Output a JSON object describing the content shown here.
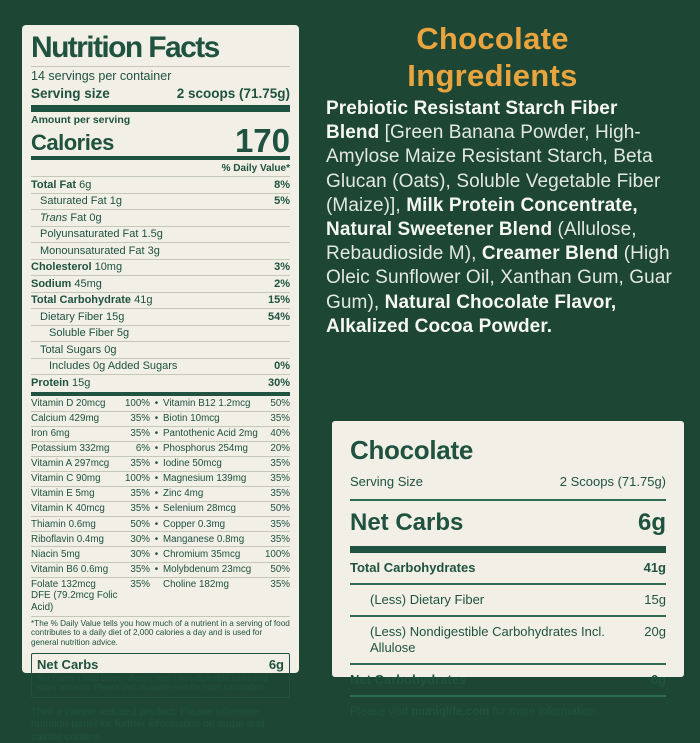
{
  "colors": {
    "background": "#1d4734",
    "panel": "#f1efe6",
    "label_green": "#1f523f",
    "accent_orange": "#e8a43e",
    "ingredients_text": "#e3e8e0",
    "divider_green": "#2e6b54"
  },
  "nutrition_label": {
    "title": "Nutrition Facts",
    "servings_per_container": "14 servings per container",
    "serving_size_label": "Serving size",
    "serving_size_value": "2 scoops (71.75g)",
    "amount_per_serving": "Amount per serving",
    "calories_label": "Calories",
    "calories_value": "170",
    "daily_value_header": "% Daily Value*",
    "nutrient_rows": [
      {
        "n": "Total Fat",
        "a": "6g",
        "dv": "8%",
        "b": 1,
        "i": 0,
        "it": 0
      },
      {
        "n": "Saturated Fat",
        "a": "1g",
        "dv": "5%",
        "b": 0,
        "i": 1,
        "it": 0
      },
      {
        "n": "Trans Fat",
        "a": "0g",
        "dv": "",
        "b": 0,
        "i": 1,
        "it": 1
      },
      {
        "n": "Polyunsaturated Fat",
        "a": "1.5g",
        "dv": "",
        "b": 0,
        "i": 1,
        "it": 0
      },
      {
        "n": "Monounsaturated Fat",
        "a": "3g",
        "dv": "",
        "b": 0,
        "i": 1,
        "it": 0
      },
      {
        "n": "Cholesterol",
        "a": "10mg",
        "dv": "3%",
        "b": 1,
        "i": 0,
        "it": 0
      },
      {
        "n": "Sodium",
        "a": "45mg",
        "dv": "2%",
        "b": 1,
        "i": 0,
        "it": 0
      },
      {
        "n": "Total Carbohydrate",
        "a": "41g",
        "dv": "15%",
        "b": 1,
        "i": 0,
        "it": 0
      },
      {
        "n": "Dietary Fiber",
        "a": "15g",
        "dv": "54%",
        "b": 0,
        "i": 1,
        "it": 0
      },
      {
        "n": "Soluble Fiber",
        "a": "5g",
        "dv": "",
        "b": 0,
        "i": 2,
        "it": 0
      },
      {
        "n": "Total Sugars",
        "a": "0g",
        "dv": "",
        "b": 0,
        "i": 1,
        "it": 0
      },
      {
        "n": "Includes 0g Added Sugars",
        "a": "",
        "dv": "0%",
        "b": 0,
        "i": 2,
        "it": 0
      },
      {
        "n": "Protein",
        "a": "15g",
        "dv": "30%",
        "b": 1,
        "i": 0,
        "it": 0
      }
    ],
    "vitamin_rows": [
      {
        "n1": "Vitamin D 20mcg",
        "p1": "100%",
        "dot": 1,
        "n2": "Vitamin B12 1.2mcg",
        "p2": "50%"
      },
      {
        "n1": "Calcium 429mg",
        "p1": "35%",
        "dot": 1,
        "n2": "Biotin 10mcg",
        "p2": "35%"
      },
      {
        "n1": "Iron 6mg",
        "p1": "35%",
        "dot": 1,
        "n2": "Pantothenic Acid 2mg",
        "p2": "40%"
      },
      {
        "n1": "Potassium 332mg",
        "p1": "6%",
        "dot": 1,
        "n2": "Phosphorus 254mg",
        "p2": "20%"
      },
      {
        "n1": "Vitamin A 297mcg",
        "p1": "35%",
        "dot": 1,
        "n2": "Iodine 50mcg",
        "p2": "35%"
      },
      {
        "n1": "Vitamin C 90mg",
        "p1": "100%",
        "dot": 1,
        "n2": "Magnesium 139mg",
        "p2": "35%"
      },
      {
        "n1": "Vitamin E 5mg",
        "p1": "35%",
        "dot": 1,
        "n2": "Zinc 4mg",
        "p2": "35%"
      },
      {
        "n1": "Vitamin K 40mcg",
        "p1": "35%",
        "dot": 1,
        "n2": "Selenium 28mcg",
        "p2": "50%"
      },
      {
        "n1": "Thiamin 0.6mg",
        "p1": "50%",
        "dot": 1,
        "n2": "Copper 0.3mg",
        "p2": "35%"
      },
      {
        "n1": "Riboflavin 0.4mg",
        "p1": "30%",
        "dot": 1,
        "n2": "Manganese 0.8mg",
        "p2": "35%"
      },
      {
        "n1": "Niacin 5mg",
        "p1": "30%",
        "dot": 1,
        "n2": "Chromium 35mcg",
        "p2": "100%"
      },
      {
        "n1": "Vitamin B6 0.6mg",
        "p1": "35%",
        "dot": 1,
        "n2": "Molybdenum 23mcg",
        "p2": "50%"
      },
      {
        "n1": "Folate 132mcg DFE (79.2mcg Folic Acid)",
        "p1": "35%",
        "dot": 0,
        "n2": "Choline 182mg",
        "p2": "35%"
      }
    ],
    "footnote": "*The % Daily Value tells you how much of a nutrient in a serving of food contributes to a daily diet of 2,000 calories a day and is used for general nutrition advice.",
    "net_carbs_box": {
      "label": "Net Carbs",
      "value": "6g",
      "small_text": "Net Carbs = total carbs - dietary fiber - non-digestible carbs and sugar alcohols. Please visit muniqlife.com for more information."
    },
    "dagger_note": "†Not a calorie reduced product. Please reference nutrition panel for further information on sugar and calorie content."
  },
  "ingredients": {
    "title_line1": "Chocolate",
    "title_line2": "Ingredients",
    "segments": [
      {
        "t": "Prebiotic Resistant Starch Fiber Blend ",
        "b": 1
      },
      {
        "t": "[Green Banana Powder, High-Amylose Maize Resistant Starch, Beta Glucan (Oats), Soluble Vegetable Fiber (Maize)], ",
        "b": 0
      },
      {
        "t": "Milk Protein Concentrate, Natural Sweetener Blend ",
        "b": 1
      },
      {
        "t": "(Allulose, Rebaudioside M), ",
        "b": 0
      },
      {
        "t": "Creamer Blend ",
        "b": 1
      },
      {
        "t": "(High Oleic Sunflower Oil, Xanthan Gum, Guar Gum), ",
        "b": 0
      },
      {
        "t": "Natural Chocolate Flavor, Alkalized Cocoa Powder.",
        "b": 1
      }
    ]
  },
  "net_carbs_panel": {
    "title": "Chocolate",
    "serving_size_label": "Serving Size",
    "serving_size_value": "2 Scoops (71.75g)",
    "net_carbs_label": "Net Carbs",
    "net_carbs_value": "6g",
    "rows": [
      {
        "n": "Total Carbohydrates",
        "a": "41g",
        "b": 1,
        "i": 0
      },
      {
        "n": "(Less) Dietary Fiber",
        "a": "15g",
        "b": 0,
        "i": 1
      },
      {
        "n": "(Less) Nondigestible Carbohydrates Incl. Allulose",
        "a": "20g",
        "b": 0,
        "i": 1
      },
      {
        "n": "Net Carbohydrates",
        "a": "6g",
        "b": 1,
        "i": 0
      }
    ],
    "footer_segments": [
      {
        "t": "Please visit ",
        "b": 0
      },
      {
        "t": "muniqlife.com",
        "b": 1
      },
      {
        "t": " for more information.",
        "b": 0
      }
    ]
  }
}
